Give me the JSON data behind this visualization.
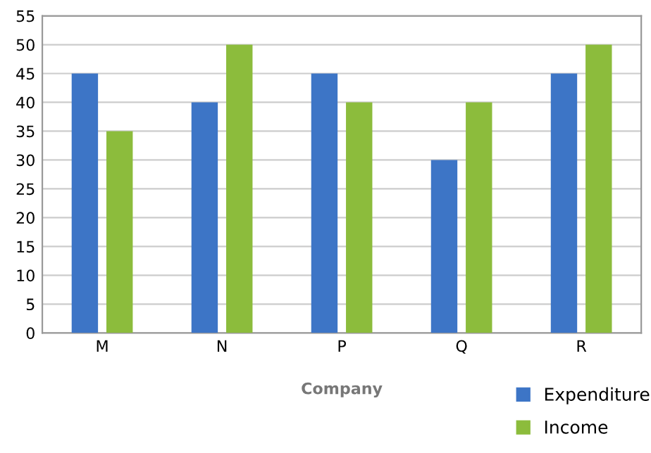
{
  "chart_data": {
    "type": "bar",
    "xlabel": "Company",
    "categories": [
      "M",
      "N",
      "P",
      "Q",
      "R"
    ],
    "series": [
      {
        "name": "Expenditure",
        "color": "#3d75c6",
        "values": [
          45,
          40,
          45,
          30,
          45
        ]
      },
      {
        "name": "Income",
        "color": "#8cbc3c",
        "values": [
          35,
          50,
          40,
          40,
          50
        ]
      }
    ],
    "ylim": [
      0,
      55
    ],
    "yticks": [
      0,
      5,
      10,
      15,
      20,
      25,
      30,
      35,
      40,
      45,
      50,
      55
    ],
    "grid": "y",
    "legend": "bottom right"
  }
}
